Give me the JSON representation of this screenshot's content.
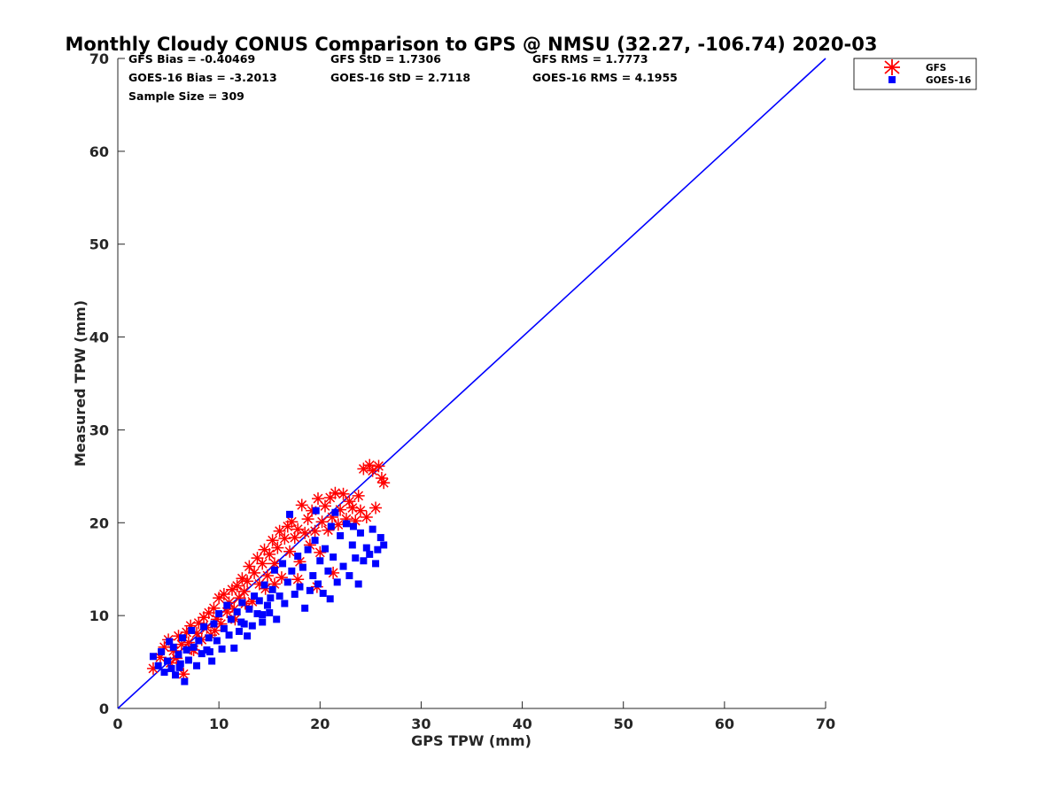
{
  "chart_data": {
    "type": "scatter",
    "title": "Monthly Cloudy CONUS Comparison to GPS @ NMSU (32.27, -106.74) 2020-03",
    "xlabel": "GPS TPW (mm)",
    "ylabel": "Measured TPW (mm)",
    "xlim": [
      0,
      70
    ],
    "ylim": [
      0,
      70
    ],
    "xticks": [
      "0",
      "10",
      "20",
      "30",
      "40",
      "50",
      "60",
      "70"
    ],
    "yticks": [
      "0",
      "10",
      "20",
      "30",
      "40",
      "50",
      "60",
      "70"
    ],
    "grid": false,
    "legend_position": "outside-top-right",
    "stats": [
      [
        "GFS Bias = -0.40469",
        "GFS StD = 1.7306",
        "GFS RMS = 1.7773"
      ],
      [
        "GOES-16 Bias = -3.2013",
        "GOES-16 StD = 2.7118",
        "GOES-16 RMS = 4.1955"
      ],
      [
        "Sample Size = 309"
      ]
    ],
    "reference_line": {
      "x": [
        0,
        70
      ],
      "y": [
        0,
        70
      ],
      "color": "#0000ff"
    },
    "series": [
      {
        "name": "GFS",
        "marker": "asterisk",
        "color": "#ff0000",
        "points": [
          [
            3.5,
            4.3
          ],
          [
            4.2,
            5.5
          ],
          [
            4.6,
            6.6
          ],
          [
            5,
            7.4
          ],
          [
            5.2,
            4.9
          ],
          [
            5.5,
            6.2
          ],
          [
            5.8,
            5.4
          ],
          [
            6,
            7.8
          ],
          [
            6.3,
            6.9
          ],
          [
            6.5,
            3.7
          ],
          [
            6.8,
            8.2
          ],
          [
            7,
            7.1
          ],
          [
            7.2,
            8.9
          ],
          [
            7.5,
            6.3
          ],
          [
            7.8,
            8.1
          ],
          [
            8,
            9.2
          ],
          [
            8.3,
            7.4
          ],
          [
            8.5,
            9.8
          ],
          [
            8.8,
            8.7
          ],
          [
            9,
            10.3
          ],
          [
            9.2,
            7.9
          ],
          [
            9.5,
            10.8
          ],
          [
            9.8,
            9.6
          ],
          [
            10,
            11.9
          ],
          [
            10.2,
            9.1
          ],
          [
            10.5,
            12.3
          ],
          [
            10.8,
            10.4
          ],
          [
            11,
            11.4
          ],
          [
            11.3,
            12.8
          ],
          [
            11.5,
            10.7
          ],
          [
            11.8,
            13.2
          ],
          [
            12,
            11.9
          ],
          [
            12.3,
            14
          ],
          [
            12.5,
            12.6
          ],
          [
            12.8,
            13.7
          ],
          [
            13,
            15.3
          ],
          [
            13.3,
            11.5
          ],
          [
            13.5,
            14.6
          ],
          [
            13.8,
            16.2
          ],
          [
            14,
            13.4
          ],
          [
            14.3,
            15.6
          ],
          [
            14.5,
            17.1
          ],
          [
            14.8,
            14.3
          ],
          [
            15,
            16.6
          ],
          [
            15.3,
            18.1
          ],
          [
            15.5,
            15.6
          ],
          [
            15.8,
            17.3
          ],
          [
            16,
            19.1
          ],
          [
            16.2,
            14.1
          ],
          [
            16.5,
            18.3
          ],
          [
            16.8,
            19.6
          ],
          [
            17,
            16.9
          ],
          [
            17.2,
            20.1
          ],
          [
            17.5,
            18.4
          ],
          [
            17.8,
            19.3
          ],
          [
            18,
            15.8
          ],
          [
            18.2,
            21.9
          ],
          [
            18.5,
            18.9
          ],
          [
            18.8,
            20.4
          ],
          [
            19,
            17.6
          ],
          [
            19.2,
            21.3
          ],
          [
            19.5,
            19.1
          ],
          [
            19.8,
            22.6
          ],
          [
            20,
            16.8
          ],
          [
            20.2,
            20.1
          ],
          [
            20.5,
            21.8
          ],
          [
            20.8,
            19.2
          ],
          [
            21,
            22.7
          ],
          [
            21.2,
            20.6
          ],
          [
            21.5,
            23.2
          ],
          [
            21.8,
            19.8
          ],
          [
            22,
            21.4
          ],
          [
            22.3,
            23.1
          ],
          [
            22.6,
            20.4
          ],
          [
            22.9,
            22.3
          ],
          [
            23.2,
            21.6
          ],
          [
            23.5,
            20.2
          ],
          [
            23.8,
            22.9
          ],
          [
            24,
            21.3
          ],
          [
            24.3,
            25.8
          ],
          [
            24.6,
            20.6
          ],
          [
            24.9,
            26.2
          ],
          [
            25.2,
            25.6
          ],
          [
            25.5,
            21.6
          ],
          [
            25.8,
            26.1
          ],
          [
            26.1,
            24.8
          ],
          [
            26.3,
            24.3
          ],
          [
            15.5,
            13.4
          ],
          [
            17.8,
            13.9
          ],
          [
            19.7,
            13.1
          ],
          [
            21.3,
            14.6
          ],
          [
            11.6,
            9.6
          ],
          [
            9.6,
            8.4
          ],
          [
            7.3,
            6.4
          ],
          [
            12.6,
            11.3
          ],
          [
            14.6,
            12.9
          ]
        ]
      },
      {
        "name": "GOES-16",
        "marker": "square",
        "color": "#0000ff",
        "points": [
          [
            3.5,
            5.6
          ],
          [
            4,
            4.6
          ],
          [
            4.3,
            6.1
          ],
          [
            4.6,
            3.9
          ],
          [
            4.9,
            5.1
          ],
          [
            5.1,
            7.2
          ],
          [
            5.3,
            4.3
          ],
          [
            5.5,
            6.6
          ],
          [
            5.7,
            3.6
          ],
          [
            6,
            5.8
          ],
          [
            6.2,
            4.8
          ],
          [
            6.4,
            7.6
          ],
          [
            6.6,
            2.9
          ],
          [
            6.8,
            6.3
          ],
          [
            7,
            5.2
          ],
          [
            7.3,
            8.4
          ],
          [
            7.5,
            6.6
          ],
          [
            7.8,
            4.6
          ],
          [
            8,
            7.3
          ],
          [
            8.3,
            5.9
          ],
          [
            8.5,
            8.8
          ],
          [
            8.8,
            6.3
          ],
          [
            9,
            7.6
          ],
          [
            9.3,
            5.1
          ],
          [
            9.5,
            9.1
          ],
          [
            9.8,
            7.3
          ],
          [
            10,
            10.2
          ],
          [
            10.3,
            6.4
          ],
          [
            10.5,
            8.6
          ],
          [
            10.8,
            11.1
          ],
          [
            11,
            7.9
          ],
          [
            11.2,
            9.6
          ],
          [
            11.5,
            6.5
          ],
          [
            11.8,
            10.4
          ],
          [
            12,
            8.3
          ],
          [
            12.3,
            11.4
          ],
          [
            12.5,
            9.1
          ],
          [
            12.8,
            7.8
          ],
          [
            13,
            10.7
          ],
          [
            13.3,
            8.9
          ],
          [
            13.5,
            12.1
          ],
          [
            13.8,
            10.2
          ],
          [
            14,
            11.6
          ],
          [
            14.3,
            9.3
          ],
          [
            14.5,
            13.3
          ],
          [
            14.8,
            11.1
          ],
          [
            15,
            10.3
          ],
          [
            15.3,
            12.8
          ],
          [
            15.5,
            14.9
          ],
          [
            15.7,
            9.6
          ],
          [
            16,
            12.1
          ],
          [
            16.3,
            15.6
          ],
          [
            16.5,
            11.3
          ],
          [
            16.8,
            13.6
          ],
          [
            17,
            20.9
          ],
          [
            17.2,
            14.8
          ],
          [
            17.5,
            12.3
          ],
          [
            17.8,
            16.4
          ],
          [
            18,
            13.1
          ],
          [
            18.3,
            15.2
          ],
          [
            18.5,
            10.8
          ],
          [
            18.8,
            17.1
          ],
          [
            19,
            12.7
          ],
          [
            19.3,
            14.3
          ],
          [
            19.5,
            18.1
          ],
          [
            19.8,
            13.4
          ],
          [
            20,
            15.9
          ],
          [
            20.3,
            12.4
          ],
          [
            20.5,
            17.2
          ],
          [
            20.8,
            14.8
          ],
          [
            21,
            11.8
          ],
          [
            21.3,
            16.3
          ],
          [
            21.5,
            21.1
          ],
          [
            21.7,
            13.6
          ],
          [
            22,
            18.6
          ],
          [
            22.3,
            15.3
          ],
          [
            22.6,
            19.9
          ],
          [
            22.9,
            14.3
          ],
          [
            23.2,
            17.6
          ],
          [
            23.5,
            16.2
          ],
          [
            23.8,
            13.4
          ],
          [
            24,
            18.9
          ],
          [
            24.3,
            15.9
          ],
          [
            24.6,
            17.3
          ],
          [
            24.9,
            16.6
          ],
          [
            25.2,
            19.3
          ],
          [
            25.5,
            15.6
          ],
          [
            25.7,
            17.1
          ],
          [
            26,
            18.4
          ],
          [
            26.3,
            17.6
          ],
          [
            19.6,
            21.3
          ],
          [
            21.1,
            19.6
          ],
          [
            23.3,
            19.6
          ],
          [
            14.3,
            10.1
          ],
          [
            12.2,
            9.3
          ],
          [
            9.1,
            6.1
          ],
          [
            6.1,
            4.4
          ],
          [
            15.1,
            11.9
          ]
        ]
      }
    ]
  }
}
